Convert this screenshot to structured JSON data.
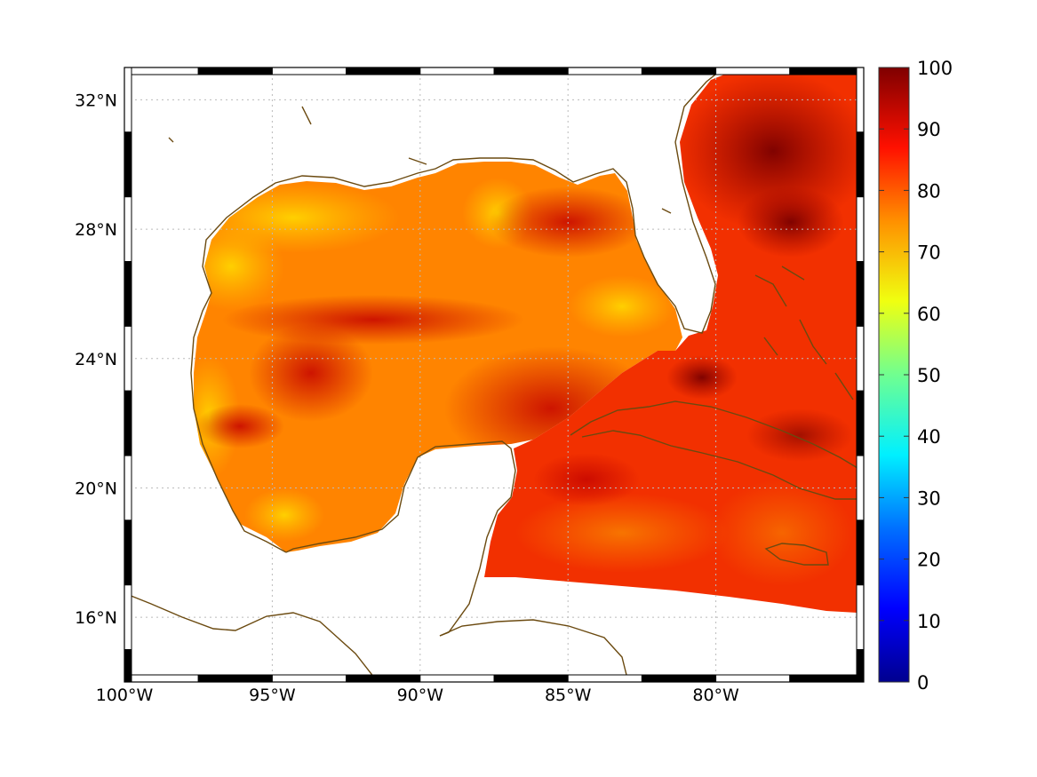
{
  "map": {
    "lon_range": [
      -100,
      -85.0,
      -80.0,
      -75.0
    ],
    "lat_range": [
      14.0,
      33.0
    ],
    "lon_ticks": [
      {
        "value": -100,
        "label": "100°W"
      },
      {
        "value": -95,
        "label": "95°W"
      },
      {
        "value": -90,
        "label": "90°W"
      },
      {
        "value": -85,
        "label": "85°W"
      },
      {
        "value": -80,
        "label": "80°W"
      }
    ],
    "lat_ticks": [
      {
        "value": 32,
        "label": "32°N"
      },
      {
        "value": 28,
        "label": "28°N"
      },
      {
        "value": 24,
        "label": "24°N"
      },
      {
        "value": 20,
        "label": "20°N"
      },
      {
        "value": 16,
        "label": "16°N"
      }
    ],
    "coast_color": "#6b4a10",
    "colors": {
      "base_field": "#ff7800",
      "high_values": "#d01000",
      "very_high_values": "#8a0000",
      "low_values": "#ffd400"
    }
  },
  "colorbar": {
    "range": [
      0,
      100
    ],
    "ticks": [
      {
        "value": 100,
        "label": "100"
      },
      {
        "value": 90,
        "label": "90"
      },
      {
        "value": 80,
        "label": "80"
      },
      {
        "value": 70,
        "label": "70"
      },
      {
        "value": 60,
        "label": "60"
      },
      {
        "value": 50,
        "label": "50"
      },
      {
        "value": 40,
        "label": "40"
      },
      {
        "value": 30,
        "label": "30"
      },
      {
        "value": 20,
        "label": "20"
      },
      {
        "value": 10,
        "label": "10"
      },
      {
        "value": 0,
        "label": "0"
      }
    ],
    "colormap": [
      "#00008f",
      "#0000ff",
      "#0080ff",
      "#00ffff",
      "#80ff80",
      "#ffff00",
      "#ff8000",
      "#ff0000",
      "#800000"
    ]
  }
}
